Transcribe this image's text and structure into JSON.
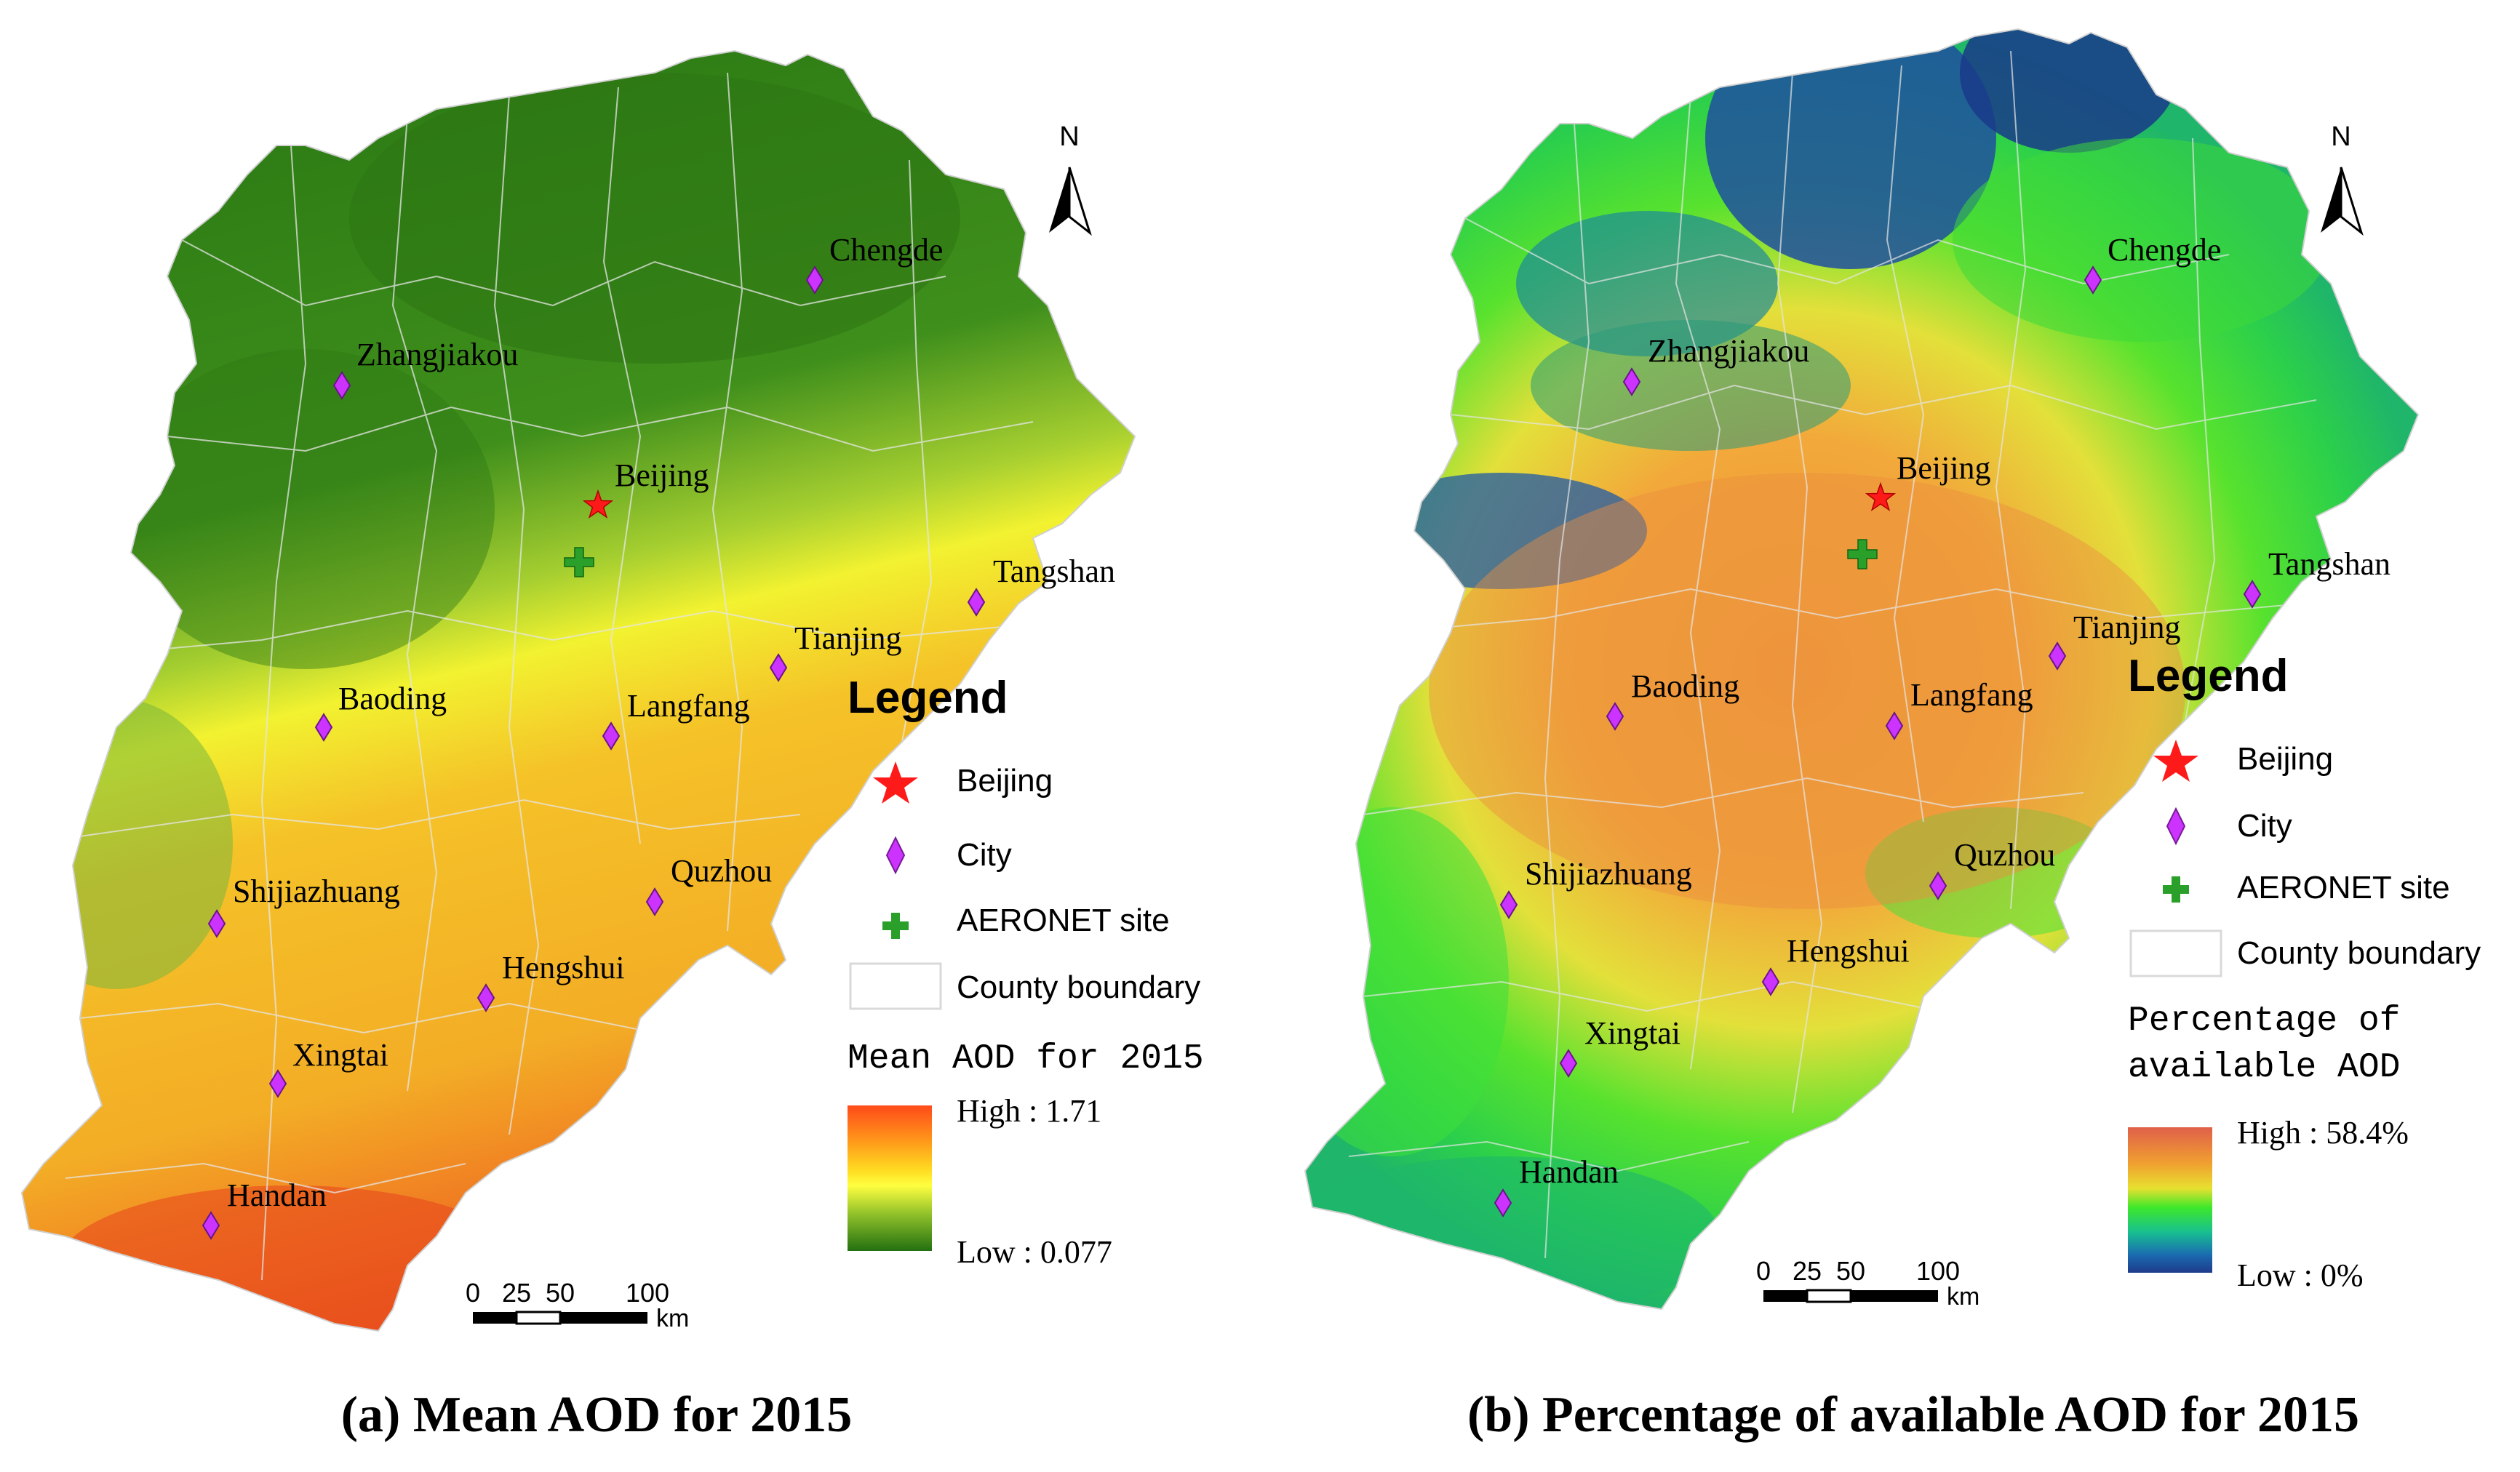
{
  "panels": [
    {
      "id": "a",
      "caption": "(a) Mean AOD for 2015",
      "north_label": "N",
      "legend": {
        "title": "Legend",
        "items": [
          {
            "symbol": "star",
            "label": "Beijing",
            "color": "#ff1a1a"
          },
          {
            "symbol": "diamond",
            "label": "City",
            "color": "#cc33ff"
          },
          {
            "symbol": "cross",
            "label": "AERONET site",
            "color": "#2aa02a"
          },
          {
            "symbol": "box",
            "label": "County boundary",
            "color": "#d9d9d9"
          }
        ],
        "ramp_title_lines": [
          "Mean AOD for 2015"
        ],
        "high_label": "High : 1.71",
        "low_label": "Low : 0.077",
        "ramp_colors": [
          "#ff4a1a",
          "#ff8a1a",
          "#ffcc1a",
          "#ffff33",
          "#b6d62e",
          "#4f9a1e",
          "#2b7a12"
        ]
      },
      "scale": {
        "ticks": [
          "0",
          "25",
          "50",
          "100"
        ],
        "unit": "km"
      },
      "places": [
        {
          "name": "Chengde",
          "type": "city"
        },
        {
          "name": "Zhangjiakou",
          "type": "city"
        },
        {
          "name": "Beijing",
          "type": "capital"
        },
        {
          "name": "Tangshan",
          "type": "city"
        },
        {
          "name": "Tianjing",
          "type": "city"
        },
        {
          "name": "Baoding",
          "type": "city"
        },
        {
          "name": "Langfang",
          "type": "city"
        },
        {
          "name": "Shijiazhuang",
          "type": "city"
        },
        {
          "name": "Quzhou",
          "type": "city"
        },
        {
          "name": "Hengshui",
          "type": "city"
        },
        {
          "name": "Xingtai",
          "type": "city"
        },
        {
          "name": "Handan",
          "type": "city"
        }
      ]
    },
    {
      "id": "b",
      "caption": "(b) Percentage of available AOD for 2015",
      "north_label": "N",
      "legend": {
        "title": "Legend",
        "items": [
          {
            "symbol": "star",
            "label": "Beijing",
            "color": "#ff1a1a"
          },
          {
            "symbol": "diamond",
            "label": "City",
            "color": "#cc33ff"
          },
          {
            "symbol": "cross",
            "label": "AERONET site",
            "color": "#2aa02a"
          },
          {
            "symbol": "box",
            "label": "County boundary",
            "color": "#d9d9d9"
          }
        ],
        "ramp_title_lines": [
          "Percentage of",
          "available AOD"
        ],
        "high_label": "High : 58.4%",
        "low_label": "Low : 0%",
        "ramp_colors": [
          "#e0604a",
          "#f0a030",
          "#e8e030",
          "#3ee82a",
          "#18c090",
          "#1a6ab0",
          "#1e3a8a"
        ]
      },
      "scale": {
        "ticks": [
          "0",
          "25",
          "50",
          "100"
        ],
        "unit": "km"
      },
      "places": [
        {
          "name": "Chengde",
          "type": "city"
        },
        {
          "name": "Zhangjiakou",
          "type": "city"
        },
        {
          "name": "Beijing",
          "type": "capital"
        },
        {
          "name": "Tangshan",
          "type": "city"
        },
        {
          "name": "Tianjing",
          "type": "city"
        },
        {
          "name": "Baoding",
          "type": "city"
        },
        {
          "name": "Langfang",
          "type": "city"
        },
        {
          "name": "Shijiazhuang",
          "type": "city"
        },
        {
          "name": "Quzhou",
          "type": "city"
        },
        {
          "name": "Hengshui",
          "type": "city"
        },
        {
          "name": "Xingtai",
          "type": "city"
        },
        {
          "name": "Handan",
          "type": "city"
        }
      ]
    }
  ]
}
